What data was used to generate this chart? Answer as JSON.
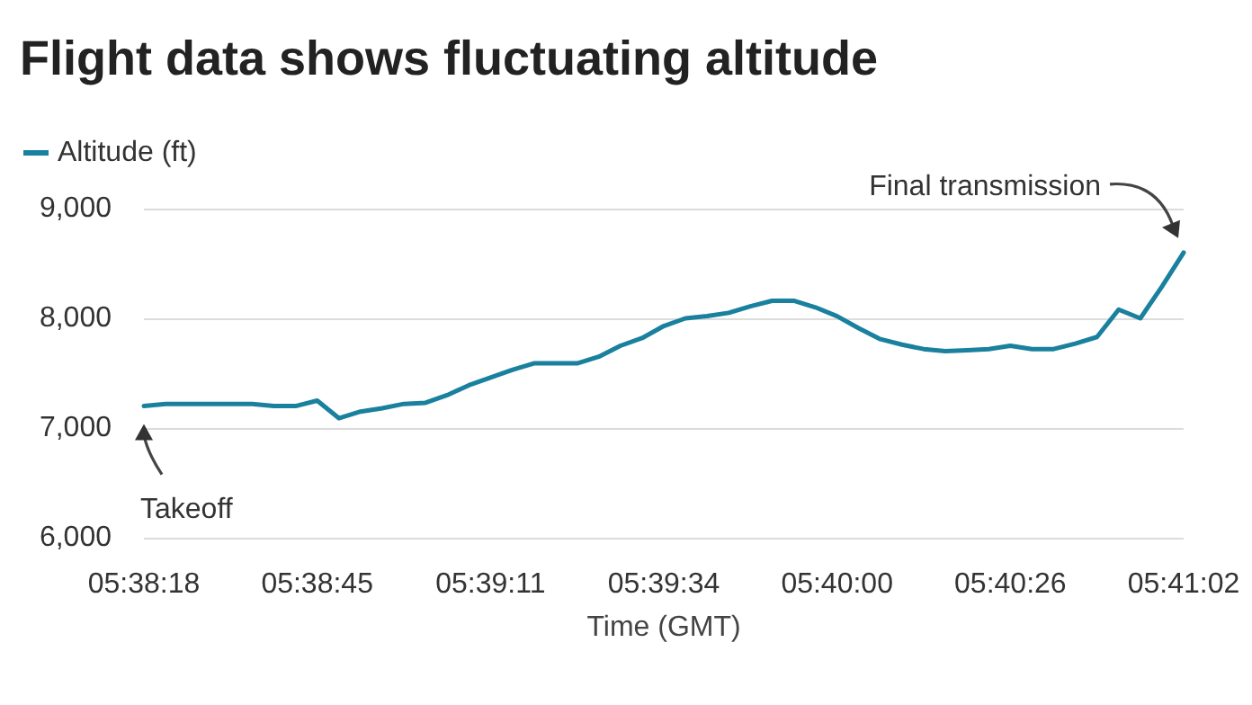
{
  "chart_data": {
    "type": "line",
    "title": "Flight data shows fluctuating altitude",
    "xlabel": "Time (GMT)",
    "categories": [
      "05:38:18",
      null,
      null,
      null,
      null,
      null,
      null,
      null,
      "05:38:45",
      null,
      null,
      null,
      null,
      null,
      null,
      null,
      "05:39:11",
      null,
      null,
      null,
      null,
      null,
      null,
      null,
      "05:39:34",
      null,
      null,
      null,
      null,
      null,
      null,
      null,
      "05:40:00",
      null,
      null,
      null,
      null,
      null,
      null,
      null,
      "05:40:26",
      null,
      null,
      null,
      null,
      null,
      null,
      null,
      "05:41:02"
    ],
    "series": [
      {
        "name": "Altitude (ft)",
        "color": "#19809e",
        "values": [
          7200,
          7220,
          7220,
          7220,
          7220,
          7220,
          7200,
          7200,
          7250,
          7090,
          7150,
          7180,
          7220,
          7230,
          7300,
          7390,
          7460,
          7530,
          7590,
          7590,
          7590,
          7650,
          7750,
          7820,
          7930,
          8000,
          8020,
          8050,
          8110,
          8160,
          8160,
          8100,
          8020,
          7910,
          7810,
          7760,
          7720,
          7700,
          7710,
          7720,
          7750,
          7720,
          7720,
          7770,
          7830,
          8080,
          8000,
          8290,
          8600
        ]
      }
    ],
    "ylim": [
      6000,
      9000
    ],
    "yticks": [
      {
        "value": 6000,
        "label": "6,000"
      },
      {
        "value": 7000,
        "label": "7,000"
      },
      {
        "value": 8000,
        "label": "8,000"
      },
      {
        "value": 9000,
        "label": "9,000"
      }
    ],
    "grid": "y",
    "legend": "top left",
    "marker": "none",
    "line_style": "solid",
    "annotations": [
      "Takeoff",
      "Final transmission"
    ]
  }
}
